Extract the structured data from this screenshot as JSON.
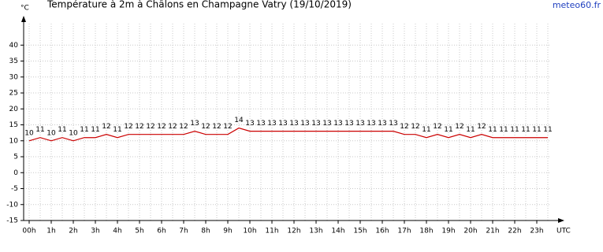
{
  "chart_data": {
    "type": "line",
    "title": "Température à 2m à Châlons en Champagne Vatry (19/10/2019)",
    "source": "meteo60.fr",
    "y_label": "°C",
    "x_label": "UTC",
    "categories": [
      "00h",
      null,
      "1h",
      null,
      "2h",
      null,
      "3h",
      null,
      "4h",
      null,
      "5h",
      null,
      "6h",
      null,
      "7h",
      null,
      "8h",
      null,
      "9h",
      null,
      "10h",
      null,
      "11h",
      null,
      "12h",
      null,
      "13h",
      null,
      "14h",
      null,
      "15h",
      null,
      "16h",
      null,
      "17h",
      null,
      "18h",
      null,
      "19h",
      null,
      "20h",
      null,
      "21h",
      null,
      "22h",
      null,
      "23h",
      null
    ],
    "series": [
      {
        "name": "Température",
        "color": "#cc0000",
        "values": [
          10,
          11,
          10,
          11,
          10,
          11,
          11,
          12,
          11,
          12,
          12,
          12,
          12,
          12,
          12,
          13,
          12,
          12,
          12,
          14,
          13,
          13,
          13,
          13,
          13,
          13,
          13,
          13,
          13,
          13,
          13,
          13,
          13,
          13,
          12,
          12,
          11,
          12,
          11,
          12,
          11,
          12,
          11,
          11,
          11,
          11,
          11,
          11
        ]
      }
    ],
    "ylim": [
      -15,
      46
    ],
    "yticks": [
      -15,
      -10,
      -5,
      0,
      5,
      10,
      15,
      20,
      25,
      30,
      35,
      40
    ],
    "grid": true
  }
}
